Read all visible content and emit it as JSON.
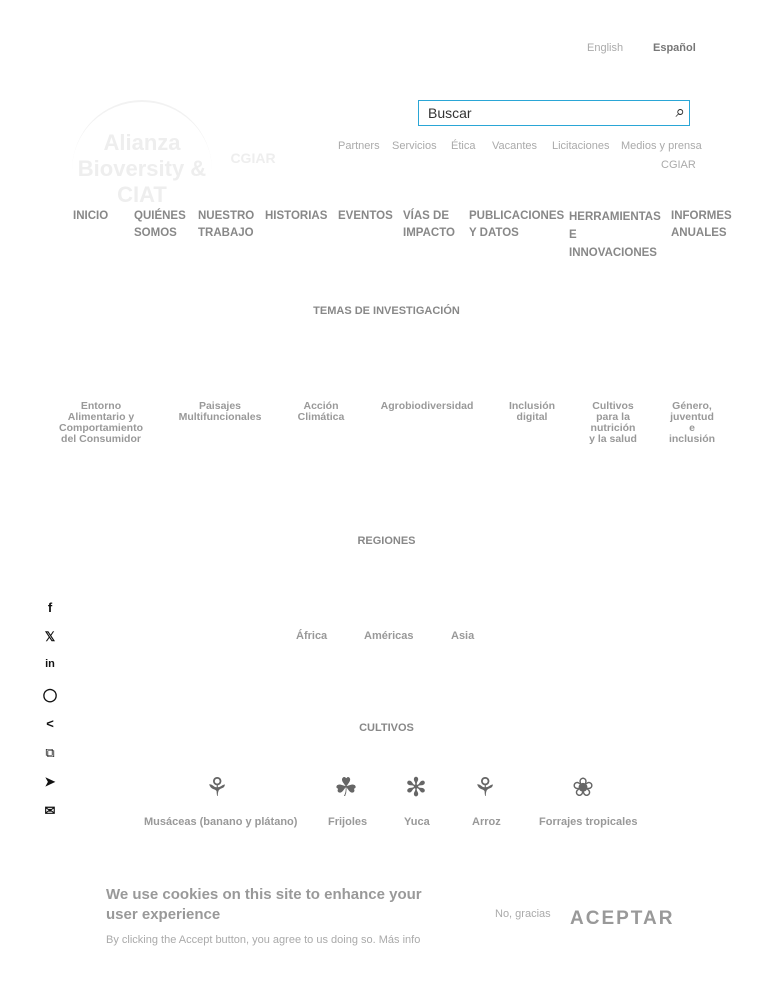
{
  "header": {
    "lang_en": "English",
    "lang_es": "Español",
    "search_placeholder": "Buscar",
    "logo1": "Alianza Bioversity & CIAT",
    "logo2": "CGIAR",
    "utility": [
      "Partners",
      "Servicios",
      "Ética",
      "Vacantes",
      "Licitaciones",
      "Medios y prensa",
      "CGIAR"
    ]
  },
  "nav": [
    "INICIO",
    "QUIÉNES\nSOMOS",
    "NUESTRO\nTRABAJO",
    "HISTORIAS",
    "EVENTOS",
    "VÍAS DE\nIMPACTO",
    "PUBLICACIONES\nY DATOS",
    "HERRAMIENTAS\nE\nINNOVACIONES",
    "INFORMES\nANUALES"
  ],
  "temas": {
    "title": "TEMAS DE INVESTIGACIÓN",
    "items": [
      "Entorno Alimentario y Comportamiento del Consumidor",
      "Paisajes Multifuncionales",
      "Acción Climática",
      "Agrobiodiversidad",
      "Inclusión digital",
      "Cultivos para la nutrición y la salud",
      "Género, juventud e inclusión"
    ]
  },
  "regiones": {
    "title": "REGIONES",
    "items": [
      "África",
      "Américas",
      "Asia"
    ]
  },
  "cultivos": {
    "title": "CULTIVOS",
    "items": [
      "Musáceas (banano y plátano)",
      "Frijoles",
      "Yuca",
      "Arroz",
      "Forrajes tropicales"
    ]
  },
  "share": [
    "facebook-icon",
    "x-icon",
    "linkedin-icon",
    "whatsapp-icon",
    "share-icon",
    "copy-icon",
    "telegram-icon",
    "email-icon"
  ],
  "cookie": {
    "title": "We use cookies on this site to enhance your user experience",
    "text": "By clicking the Accept button, you agree to us doing so.",
    "more": "Más info",
    "decline": "No, gracias",
    "accept": "ACEPTAR"
  }
}
